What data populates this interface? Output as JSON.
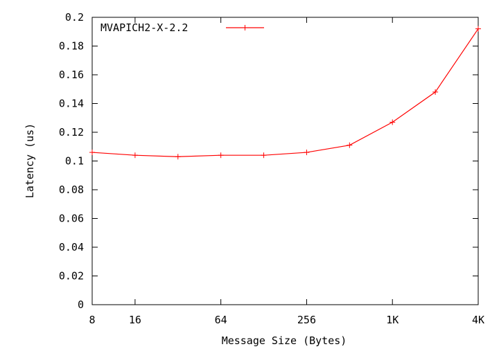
{
  "chart_data": {
    "type": "line",
    "xlabel": "Message Size (Bytes)",
    "ylabel": "Latency (us)",
    "x_scale": "log2",
    "x_tick_labels": [
      "8",
      "16",
      "64",
      "256",
      "1K",
      "4K"
    ],
    "x_tick_values": [
      8,
      16,
      64,
      256,
      1024,
      4096
    ],
    "y_tick_labels": [
      "0",
      "0.02",
      "0.04",
      "0.06",
      "0.08",
      "0.1",
      "0.12",
      "0.14",
      "0.16",
      "0.18",
      "0.2"
    ],
    "ylim": [
      0,
      0.2
    ],
    "xlim": [
      8,
      4096
    ],
    "grid": false,
    "legend_position": "top-left",
    "series": [
      {
        "name": "MVAPICH2-X-2.2",
        "color": "#ff0000",
        "marker": "plus",
        "x": [
          8,
          16,
          32,
          64,
          128,
          256,
          512,
          1024,
          2048,
          4096
        ],
        "values": [
          0.106,
          0.104,
          0.103,
          0.104,
          0.104,
          0.106,
          0.111,
          0.127,
          0.148,
          0.192
        ]
      }
    ]
  }
}
